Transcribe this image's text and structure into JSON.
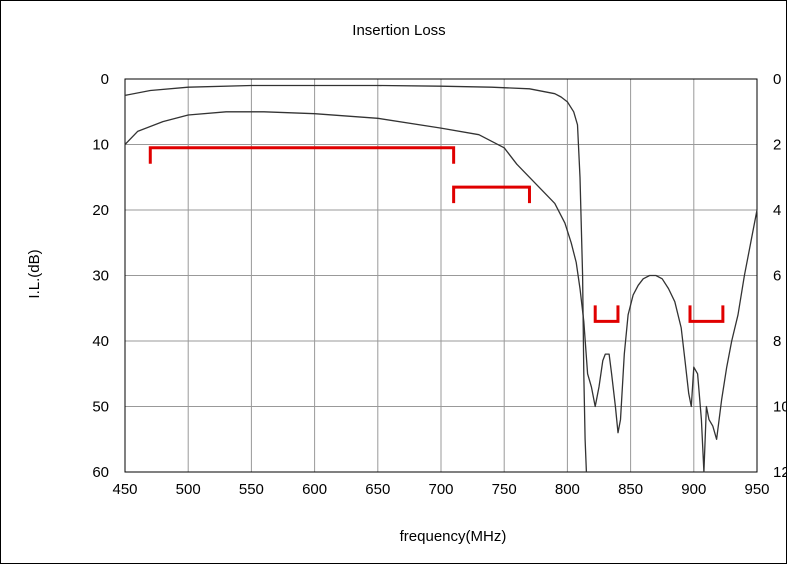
{
  "chart_data": {
    "type": "line",
    "title": "Insertion Loss",
    "xlabel": "frequency(MHz)",
    "ylabel": "I.L.(dB)",
    "xlim": [
      450,
      950
    ],
    "ylim": [
      0,
      60
    ],
    "y2lim": [
      0,
      12
    ],
    "y_inverted": true,
    "grid": true,
    "x_ticks": [
      "450",
      "500",
      "550",
      "600",
      "650",
      "700",
      "750",
      "800",
      "850",
      "900",
      "950"
    ],
    "y_ticks": [
      "0",
      "10",
      "20",
      "30",
      "40",
      "50",
      "60"
    ],
    "y2_ticks": [
      "0",
      "2",
      "4",
      "6",
      "8",
      "10",
      "12"
    ],
    "series": [
      {
        "axis": "right",
        "color": "#333333",
        "x": [
          450,
          470,
          500,
          550,
          600,
          650,
          700,
          740,
          770,
          790,
          795,
          800,
          805,
          808,
          810,
          812,
          813,
          814,
          815,
          815.5
        ],
        "y": [
          0.5,
          0.35,
          0.25,
          0.2,
          0.2,
          0.2,
          0.22,
          0.25,
          0.3,
          0.45,
          0.55,
          0.7,
          1.0,
          1.4,
          3.0,
          6.0,
          9.0,
          11.0,
          12.0,
          12.0
        ]
      },
      {
        "axis": "left",
        "color": "#333333",
        "x": [
          450,
          460,
          480,
          500,
          530,
          560,
          600,
          650,
          700,
          730,
          750,
          760,
          770,
          780,
          790,
          798,
          803,
          807,
          810,
          813,
          816,
          819,
          822,
          825,
          828,
          830,
          833,
          835,
          838,
          840,
          842,
          845,
          848,
          852,
          856,
          860,
          865,
          870,
          875,
          880,
          885,
          890,
          893,
          896,
          898,
          900,
          903,
          906,
          908,
          910,
          912,
          915,
          918,
          922,
          926,
          930,
          935,
          940,
          945,
          950
        ],
        "y": [
          10,
          8,
          6.5,
          5.5,
          5,
          5,
          5.3,
          6,
          7.5,
          8.5,
          10.5,
          13,
          15,
          17,
          19,
          22,
          25,
          28,
          32,
          37,
          45,
          47,
          50,
          47,
          43,
          42,
          42,
          45,
          50,
          54,
          52,
          42,
          36,
          33,
          31.5,
          30.5,
          30,
          30,
          30.5,
          32,
          34,
          38,
          43,
          48,
          50,
          44,
          45,
          52,
          60,
          50,
          52,
          53,
          55,
          49,
          44,
          40,
          36,
          30,
          25,
          20
        ]
      }
    ],
    "spec_marks": [
      {
        "x0": 470,
        "x1": 710,
        "level": 10.5,
        "side": "top"
      },
      {
        "x0": 710,
        "x1": 770,
        "level": 16.5,
        "side": "top"
      },
      {
        "x0": 822,
        "x1": 840,
        "level": 37,
        "side": "bottom"
      },
      {
        "x0": 897,
        "x1": 923,
        "level": 37,
        "side": "bottom"
      }
    ]
  }
}
